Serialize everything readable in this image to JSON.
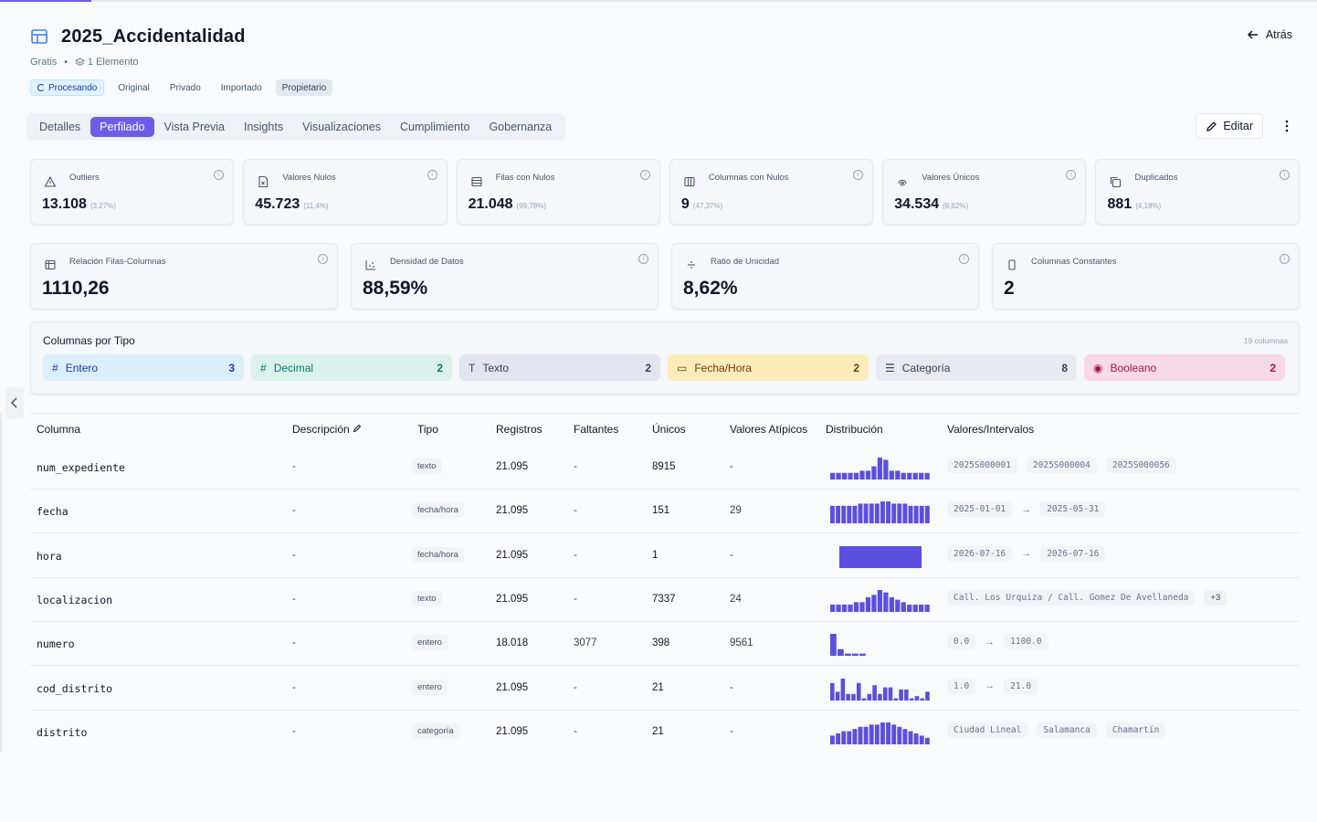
{
  "header": {
    "title": "2025_Accidentalidad",
    "back_label": "Atrás",
    "plan": "Gratis",
    "elements": "1 Elemento",
    "badges": [
      "Procesando",
      "Original",
      "Privado",
      "Importado",
      "Propietario"
    ]
  },
  "tabs": [
    "Detalles",
    "Perfilado",
    "Vista Previa",
    "Insights",
    "Visualizaciones",
    "Cumplimiento",
    "Gobernanza"
  ],
  "active_tab": "Perfilado",
  "edit_label": "Editar",
  "stats_row1": [
    {
      "label": "Outliers",
      "value": "13.108",
      "pct": "(3,27%)",
      "icon": "warning-icon"
    },
    {
      "label": "Valores Nulos",
      "value": "45.723",
      "pct": "(11,4%)",
      "icon": "file-x-icon"
    },
    {
      "label": "Filas con Nulos",
      "value": "21.048",
      "pct": "(99,78%)",
      "icon": "rows-icon"
    },
    {
      "label": "Columnas con Nulos",
      "value": "9",
      "pct": "(47,37%)",
      "icon": "columns-icon"
    },
    {
      "label": "Valores Únicos",
      "value": "34.534",
      "pct": "(8,62%)",
      "icon": "fingerprint-icon"
    },
    {
      "label": "Duplicados",
      "value": "881",
      "pct": "(4,18%)",
      "icon": "copy-icon"
    }
  ],
  "stats_row2": [
    {
      "label": "Relación Filas-Columnas",
      "value": "1110,26",
      "icon": "table-icon"
    },
    {
      "label": "Densidad de Datos",
      "value": "88,59%",
      "icon": "scatter-icon"
    },
    {
      "label": "Ratio de Unicidad",
      "value": "8,62%",
      "icon": "divide-icon"
    },
    {
      "label": "Columnas Constantes",
      "value": "2",
      "icon": "rectangle-icon"
    }
  ],
  "types": {
    "title": "Columnas por Tipo",
    "count_label": "19 columnas",
    "chips": [
      {
        "symbol": "#",
        "name": "Entero",
        "count": "3"
      },
      {
        "symbol": "#",
        "name": "Decimal",
        "count": "2"
      },
      {
        "symbol": "T",
        "name": "Texto",
        "count": "2"
      },
      {
        "symbol": "▭",
        "name": "Fecha/Hora",
        "count": "2"
      },
      {
        "symbol": "☰",
        "name": "Categoría",
        "count": "8"
      },
      {
        "symbol": "◉",
        "name": "Booleano",
        "count": "2"
      }
    ]
  },
  "table": {
    "headers": [
      "Columna",
      "Descripción",
      "Tipo",
      "Registros",
      "Faltantes",
      "Únicos",
      "Valores Atípicos",
      "Distribución",
      "Valores/Intervalos"
    ],
    "rows": [
      {
        "col": "num_expediente",
        "desc": "-",
        "tipo": "texto",
        "reg": "21.095",
        "falt": "-",
        "unicos": "8915",
        "atip": "-",
        "dist": [
          3,
          3,
          3,
          3,
          3,
          4,
          4,
          6,
          10,
          9,
          4,
          4,
          3,
          3,
          3,
          3,
          3
        ],
        "vals": [
          "2025S000001",
          "2025S000004",
          "2025S000056"
        ],
        "range": false
      },
      {
        "col": "fecha",
        "desc": "-",
        "tipo": "fecha/hora",
        "reg": "21.095",
        "falt": "-",
        "unicos": "151",
        "atip": "29",
        "dist": [
          8,
          8,
          8,
          8,
          8,
          9,
          9,
          9,
          9,
          10,
          10,
          9,
          9,
          9,
          8,
          8,
          8,
          8
        ],
        "vals": [
          "2025-01-01",
          "2025-05-31"
        ],
        "range": true
      },
      {
        "col": "hora",
        "desc": "-",
        "tipo": "fecha/hora",
        "reg": "21.095",
        "falt": "-",
        "unicos": "1",
        "atip": "-",
        "dist": [
          10
        ],
        "vals": [
          "2026-07-16",
          "2026-07-16"
        ],
        "range": true
      },
      {
        "col": "localizacion",
        "desc": "-",
        "tipo": "texto",
        "reg": "21.095",
        "falt": "-",
        "unicos": "7337",
        "atip": "24",
        "dist": [
          3,
          3,
          3,
          3,
          4,
          4,
          6,
          7,
          9,
          8,
          6,
          5,
          4,
          3,
          3,
          3,
          3
        ],
        "vals": [
          "Call. Los Urquiza / Call. Gomez De Avellaneda"
        ],
        "extra": "+3",
        "range": false
      },
      {
        "col": "numero",
        "desc": "-",
        "tipo": "entero",
        "reg": "18.018",
        "falt": "3077",
        "unicos": "398",
        "atip": "9561",
        "dist": [
          10,
          3,
          1,
          1,
          1
        ],
        "vals": [
          "0.0",
          "1100.0"
        ],
        "range": true
      },
      {
        "col": "cod_distrito",
        "desc": "-",
        "tipo": "entero",
        "reg": "21.095",
        "falt": "-",
        "unicos": "21",
        "atip": "-",
        "dist": [
          8,
          4,
          10,
          3,
          3,
          8,
          1,
          3,
          7,
          3,
          6,
          6,
          1,
          5,
          5,
          1,
          2,
          1,
          4
        ],
        "vals": [
          "1.0",
          "21.0"
        ],
        "range": true
      },
      {
        "col": "distrito",
        "desc": "-",
        "tipo": "categoría",
        "reg": "21.095",
        "falt": "-",
        "unicos": "21",
        "atip": "-",
        "dist": [
          4,
          5,
          6,
          6,
          7,
          8,
          8,
          9,
          9,
          10,
          10,
          9,
          8,
          7,
          6,
          5,
          4,
          3
        ],
        "vals": [
          "Ciudad Lineal",
          "Salamanca",
          "Chamartín"
        ],
        "range": false
      }
    ]
  },
  "colors": {
    "accent": "#6d5ce8",
    "bars": "#5b4fe0"
  }
}
